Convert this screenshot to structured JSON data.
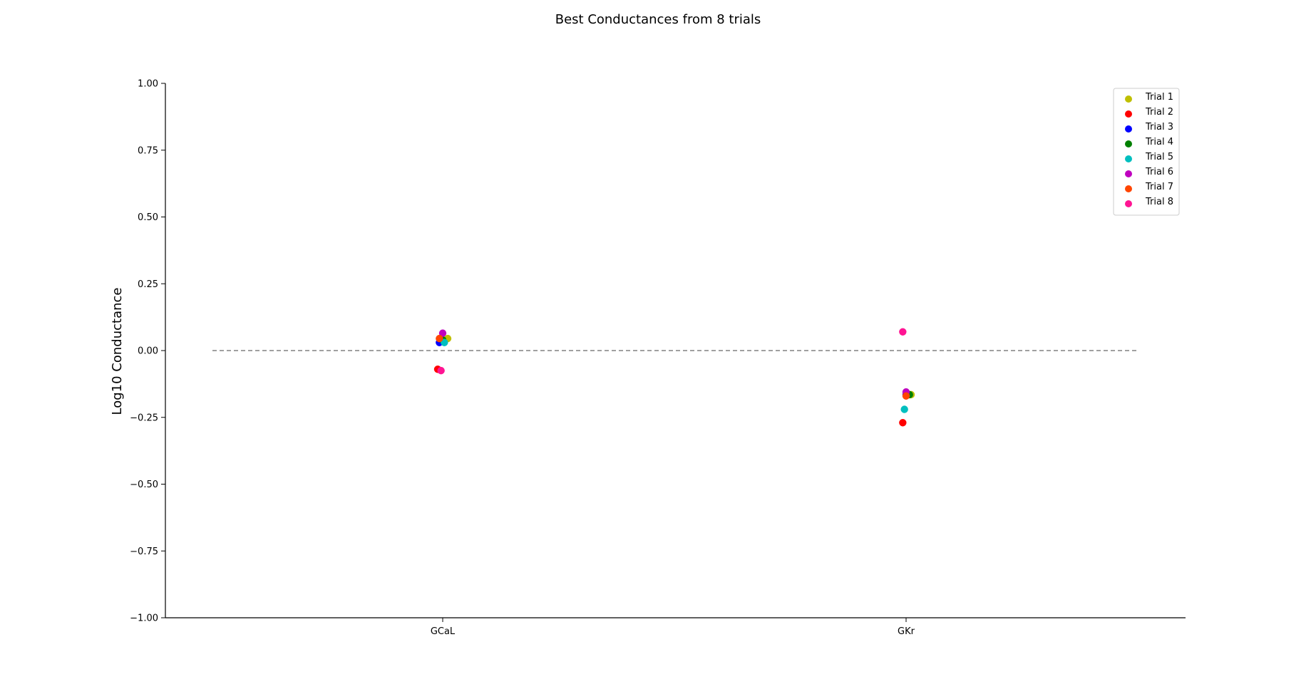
{
  "chart_data": {
    "type": "scatter",
    "title": "Best Conductances from 8 trials",
    "xlabel": "",
    "ylabel": "Log10 Conductance",
    "categories": [
      "GCaL",
      "GKr"
    ],
    "ylim": [
      -1.0,
      1.0
    ],
    "yticks": [
      "−1.00",
      "−0.75",
      "−0.50",
      "−0.25",
      "0.00",
      "0.25",
      "0.50",
      "0.75",
      "1.00"
    ],
    "ytick_values": [
      -1.0,
      -0.75,
      -0.5,
      -0.25,
      0.0,
      0.25,
      0.5,
      0.75,
      1.0
    ],
    "reference_line": {
      "y": 0.0,
      "style": "dashed",
      "color": "#808080"
    },
    "grid": false,
    "legend_position": "top-right",
    "series": [
      {
        "name": "Trial 1",
        "color": "#bfbf00",
        "values": [
          0.045,
          -0.165
        ]
      },
      {
        "name": "Trial 2",
        "color": "#ff0000",
        "values": [
          -0.07,
          -0.27
        ]
      },
      {
        "name": "Trial 3",
        "color": "#0000ff",
        "values": [
          0.03,
          -0.165
        ]
      },
      {
        "name": "Trial 4",
        "color": "#008000",
        "values": [
          0.04,
          -0.165
        ]
      },
      {
        "name": "Trial 5",
        "color": "#00bfbf",
        "values": [
          0.03,
          -0.22
        ]
      },
      {
        "name": "Trial 6",
        "color": "#bf00bf",
        "values": [
          0.065,
          -0.155
        ]
      },
      {
        "name": "Trial 7",
        "color": "#ff4500",
        "values": [
          0.045,
          -0.17
        ]
      },
      {
        "name": "Trial 8",
        "color": "#ff1493",
        "values": [
          -0.075,
          0.07
        ]
      }
    ],
    "jitter": [
      [
        0.018,
        0.018
      ],
      [
        -0.018,
        -0.012
      ],
      [
        -0.012,
        0.0
      ],
      [
        0.0,
        0.012
      ],
      [
        0.006,
        -0.006
      ],
      [
        0.0,
        0.0
      ],
      [
        -0.012,
        0.0
      ],
      [
        -0.006,
        -0.012
      ]
    ]
  }
}
